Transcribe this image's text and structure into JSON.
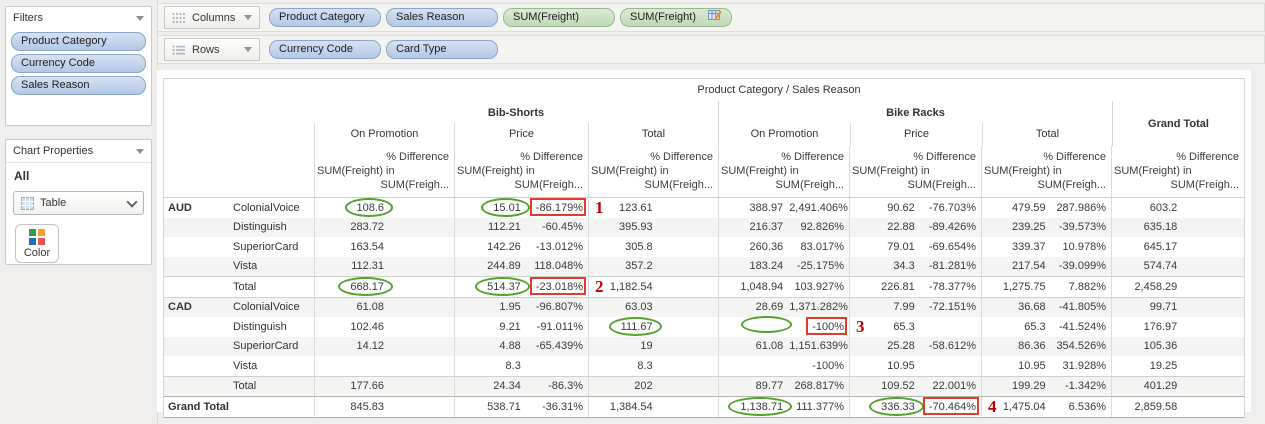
{
  "filters_panel": {
    "title": "Filters",
    "pills": [
      "Product Category",
      "Currency Code",
      "Sales Reason"
    ]
  },
  "chart_properties": {
    "title": "Chart Properties",
    "scope_label": "All",
    "chart_type": "Table",
    "color_button_label": "Color"
  },
  "shelves": {
    "columns": {
      "label": "Columns",
      "pills": [
        {
          "label": "Product Category",
          "kind": "dimension"
        },
        {
          "label": "Sales Reason",
          "kind": "dimension"
        },
        {
          "label": "SUM(Freight)",
          "kind": "measure"
        },
        {
          "label": "SUM(Freight)",
          "kind": "measure",
          "icon": "table-calc-icon"
        }
      ]
    },
    "rows": {
      "label": "Rows",
      "pills": [
        {
          "label": "Currency Code",
          "kind": "dimension"
        },
        {
          "label": "Card Type",
          "kind": "dimension"
        }
      ]
    }
  },
  "table": {
    "title": "Product Category / Sales Reason",
    "groups": [
      {
        "label": "Bib-Shorts",
        "reasons": [
          "On Promotion",
          "Price",
          "Total"
        ]
      },
      {
        "label": "Bike Racks",
        "reasons": [
          "On Promotion",
          "Price",
          "Total"
        ]
      }
    ],
    "grand_total_label": "Grand Total",
    "measure_header": {
      "line1": "% Difference",
      "line2": "SUM(Freight) in",
      "line3": "SUM(Freigh..."
    },
    "rows": [
      {
        "currency": "AUD",
        "card": "ColonialVoice",
        "cells": [
          "108.6",
          "",
          "15.01",
          "-86.179%",
          "123.61",
          "",
          "388.97",
          "2,491.406%",
          "90.62",
          "-76.703%",
          "479.59",
          "287.986%",
          "603.2",
          ""
        ]
      },
      {
        "currency": "",
        "card": "Distinguish",
        "cells": [
          "283.72",
          "",
          "112.21",
          "-60.45%",
          "395.93",
          "",
          "216.37",
          "92.826%",
          "22.88",
          "-89.426%",
          "239.25",
          "-39.573%",
          "635.18",
          ""
        ]
      },
      {
        "currency": "",
        "card": "SuperiorCard",
        "cells": [
          "163.54",
          "",
          "142.26",
          "-13.012%",
          "305.8",
          "",
          "260.36",
          "83.017%",
          "79.01",
          "-69.654%",
          "339.37",
          "10.978%",
          "645.17",
          ""
        ]
      },
      {
        "currency": "",
        "card": "Vista",
        "cells": [
          "112.31",
          "",
          "244.89",
          "118.048%",
          "357.2",
          "",
          "183.24",
          "-25.175%",
          "34.3",
          "-81.281%",
          "217.54",
          "-39.099%",
          "574.74",
          ""
        ]
      },
      {
        "currency": "",
        "card": "Total",
        "cells": [
          "668.17",
          "",
          "514.37",
          "-23.018%",
          "1,182.54",
          "",
          "1,048.94",
          "103.927%",
          "226.81",
          "-78.377%",
          "1,275.75",
          "7.882%",
          "2,458.29",
          ""
        ]
      },
      {
        "currency": "CAD",
        "card": "ColonialVoice",
        "cells": [
          "61.08",
          "",
          "1.95",
          "-96.807%",
          "63.03",
          "",
          "28.69",
          "1,371.282%",
          "7.99",
          "-72.151%",
          "36.68",
          "-41.805%",
          "99.71",
          ""
        ]
      },
      {
        "currency": "",
        "card": "Distinguish",
        "cells": [
          "102.46",
          "",
          "9.21",
          "-91.011%",
          "111.67",
          "",
          "",
          "-100%",
          "65.3",
          "",
          "65.3",
          "-41.524%",
          "176.97",
          ""
        ]
      },
      {
        "currency": "",
        "card": "SuperiorCard",
        "cells": [
          "14.12",
          "",
          "4.88",
          "-65.439%",
          "19",
          "",
          "61.08",
          "1,151.639%",
          "25.28",
          "-58.612%",
          "86.36",
          "354.526%",
          "105.36",
          ""
        ]
      },
      {
        "currency": "",
        "card": "Vista",
        "cells": [
          "",
          "",
          "8.3",
          "",
          "8.3",
          "",
          "",
          "-100%",
          "10.95",
          "",
          "10.95",
          "31.928%",
          "19.25",
          ""
        ]
      },
      {
        "currency": "",
        "card": "Total",
        "cells": [
          "177.66",
          "",
          "24.34",
          "-86.3%",
          "202",
          "",
          "89.77",
          "268.817%",
          "109.52",
          "22.001%",
          "199.29",
          "-1.342%",
          "401.29",
          ""
        ]
      },
      {
        "currency": "Grand Total",
        "card": "",
        "cells": [
          "845.83",
          "",
          "538.71",
          "-36.31%",
          "1,384.54",
          "",
          "1,138.71",
          "111.377%",
          "336.33",
          "-70.464%",
          "1,475.04",
          "6.536%",
          "2,859.58",
          ""
        ]
      }
    ]
  },
  "annotations": [
    {
      "row": 0,
      "cell": 0,
      "type": "circle"
    },
    {
      "row": 0,
      "cell": 2,
      "type": "circle"
    },
    {
      "row": 0,
      "cell": 3,
      "type": "box",
      "num": "1"
    },
    {
      "row": 4,
      "cell": 0,
      "type": "circle"
    },
    {
      "row": 4,
      "cell": 2,
      "type": "circle"
    },
    {
      "row": 4,
      "cell": 3,
      "type": "box",
      "num": "2"
    },
    {
      "row": 6,
      "cell": 4,
      "type": "circle"
    },
    {
      "row": 6,
      "cell": 6,
      "type": "circle"
    },
    {
      "row": 6,
      "cell": 7,
      "type": "box",
      "num": "3"
    },
    {
      "row": 10,
      "cell": 6,
      "type": "circle"
    },
    {
      "row": 10,
      "cell": 8,
      "type": "circle"
    },
    {
      "row": 10,
      "cell": 9,
      "type": "box",
      "num": "4"
    }
  ],
  "colors": {
    "dimension_pill": "#b7cbe8",
    "measure_pill": "#c8dfc0",
    "annotation_circle": "#55a12f",
    "annotation_box": "#e23a2b",
    "annotation_number": "#c00000"
  }
}
